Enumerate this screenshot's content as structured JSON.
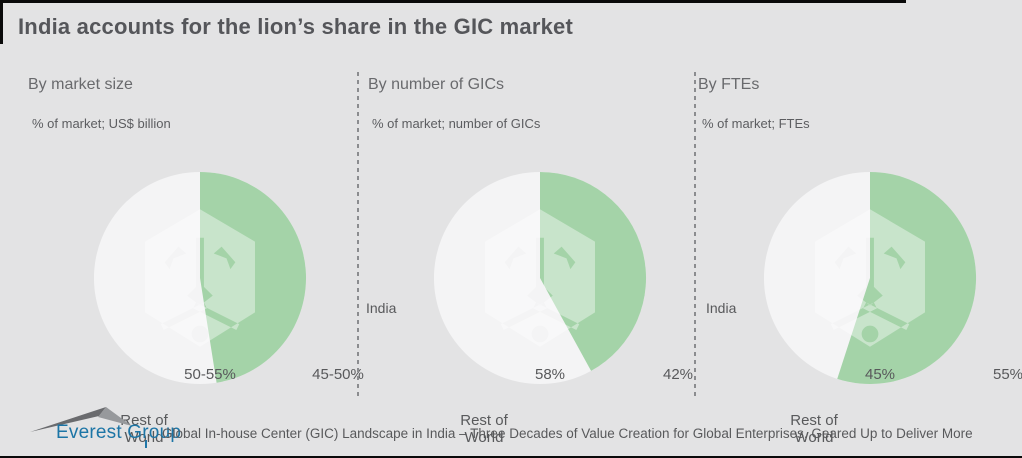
{
  "title": "India accounts for the lion’s share in the GIC market",
  "footer": {
    "brand": "Everest Group",
    "caption": "Global In-house Center (GIC) Landscape in India – Three Decades of Value Creation for Global Enterprises, Geared Up to Deliver More"
  },
  "icons": {
    "logo": "everest-mountain-icon",
    "watermark": "lion-face-watermark-icon"
  },
  "colors": {
    "background": "#e3e3e4",
    "india_green": "#a4d3a8",
    "rest_light": "#f4f4f5",
    "title_gray": "#55565a",
    "text_gray": "#58595b",
    "brand_blue": "#1c75a6",
    "edge_black": "#0a0a0a"
  },
  "chart_data": [
    {
      "type": "pie",
      "title": "By market size",
      "subtitle": "% of market; US$ billion",
      "start_angle_deg": 0,
      "direction": "clockwise",
      "slices": [
        {
          "label": "India",
          "value_label": "45-50%",
          "value_pct": 47.5,
          "color": "#a4d3a8"
        },
        {
          "label": "Rest of World",
          "value_label": "50-55%",
          "value_pct": 52.5,
          "color": "#f4f4f5"
        }
      ]
    },
    {
      "type": "pie",
      "title": "By number of GICs",
      "subtitle": "% of market; number of GICs",
      "start_angle_deg": 0,
      "direction": "clockwise",
      "slices": [
        {
          "label": "India",
          "value_label": "42%",
          "value_pct": 42,
          "color": "#a4d3a8"
        },
        {
          "label": "Rest of World",
          "value_label": "58%",
          "value_pct": 58,
          "color": "#f4f4f5"
        }
      ]
    },
    {
      "type": "pie",
      "title": "By FTEs",
      "subtitle": "% of market; FTEs",
      "start_angle_deg": 0,
      "direction": "clockwise",
      "slices": [
        {
          "label": "India",
          "value_label": "55%",
          "value_pct": 55,
          "color": "#a4d3a8"
        },
        {
          "label": "Rest of World",
          "value_label": "45%",
          "value_pct": 45,
          "color": "#f4f4f5"
        }
      ]
    }
  ]
}
